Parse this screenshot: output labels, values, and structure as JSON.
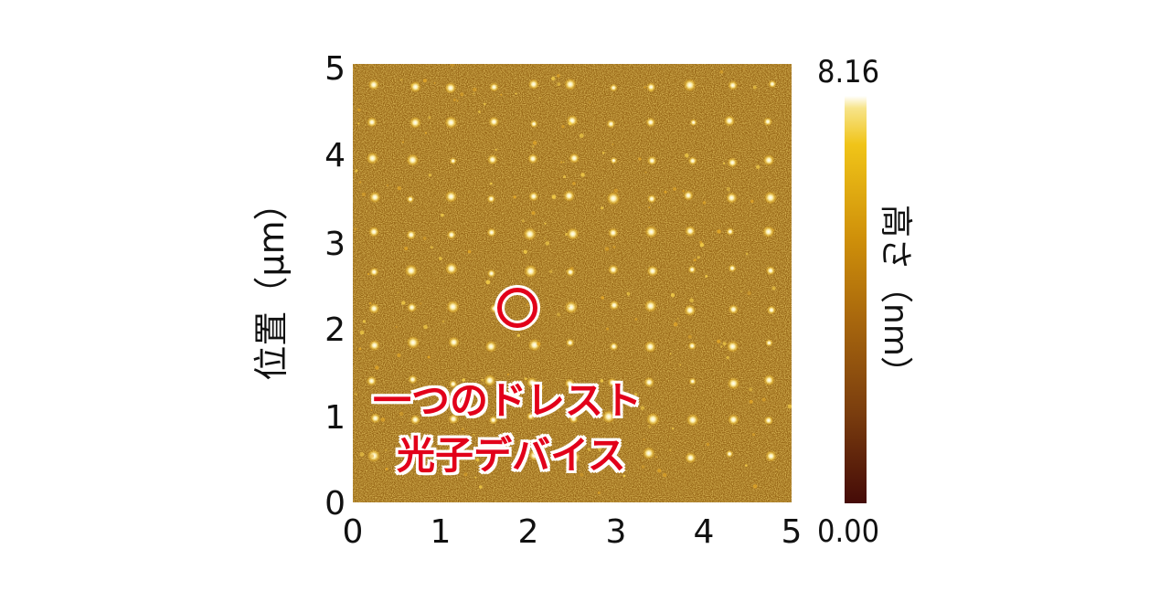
{
  "figure": {
    "y_axis_label": "位置（μm）",
    "x_ticks": [
      "0",
      "1",
      "2",
      "3",
      "4",
      "5"
    ],
    "y_ticks": [
      "0",
      "1",
      "2",
      "3",
      "4",
      "5"
    ],
    "colorbar": {
      "label": "高さ（nm）",
      "max": "8.16",
      "min": "0.00",
      "colors": [
        "#ffffff",
        "#f0c418",
        "#cf900a",
        "#a8670d",
        "#7a3d0e",
        "#450b08"
      ]
    },
    "annotation": {
      "line1": "一つのドレスト",
      "line2": "光子デバイス",
      "color": "#e2001a"
    },
    "dot_grid": {
      "columns": 11,
      "rows": 11
    },
    "image_colors": {
      "background": "#8a5a10",
      "dot": "#fff3b0"
    }
  }
}
